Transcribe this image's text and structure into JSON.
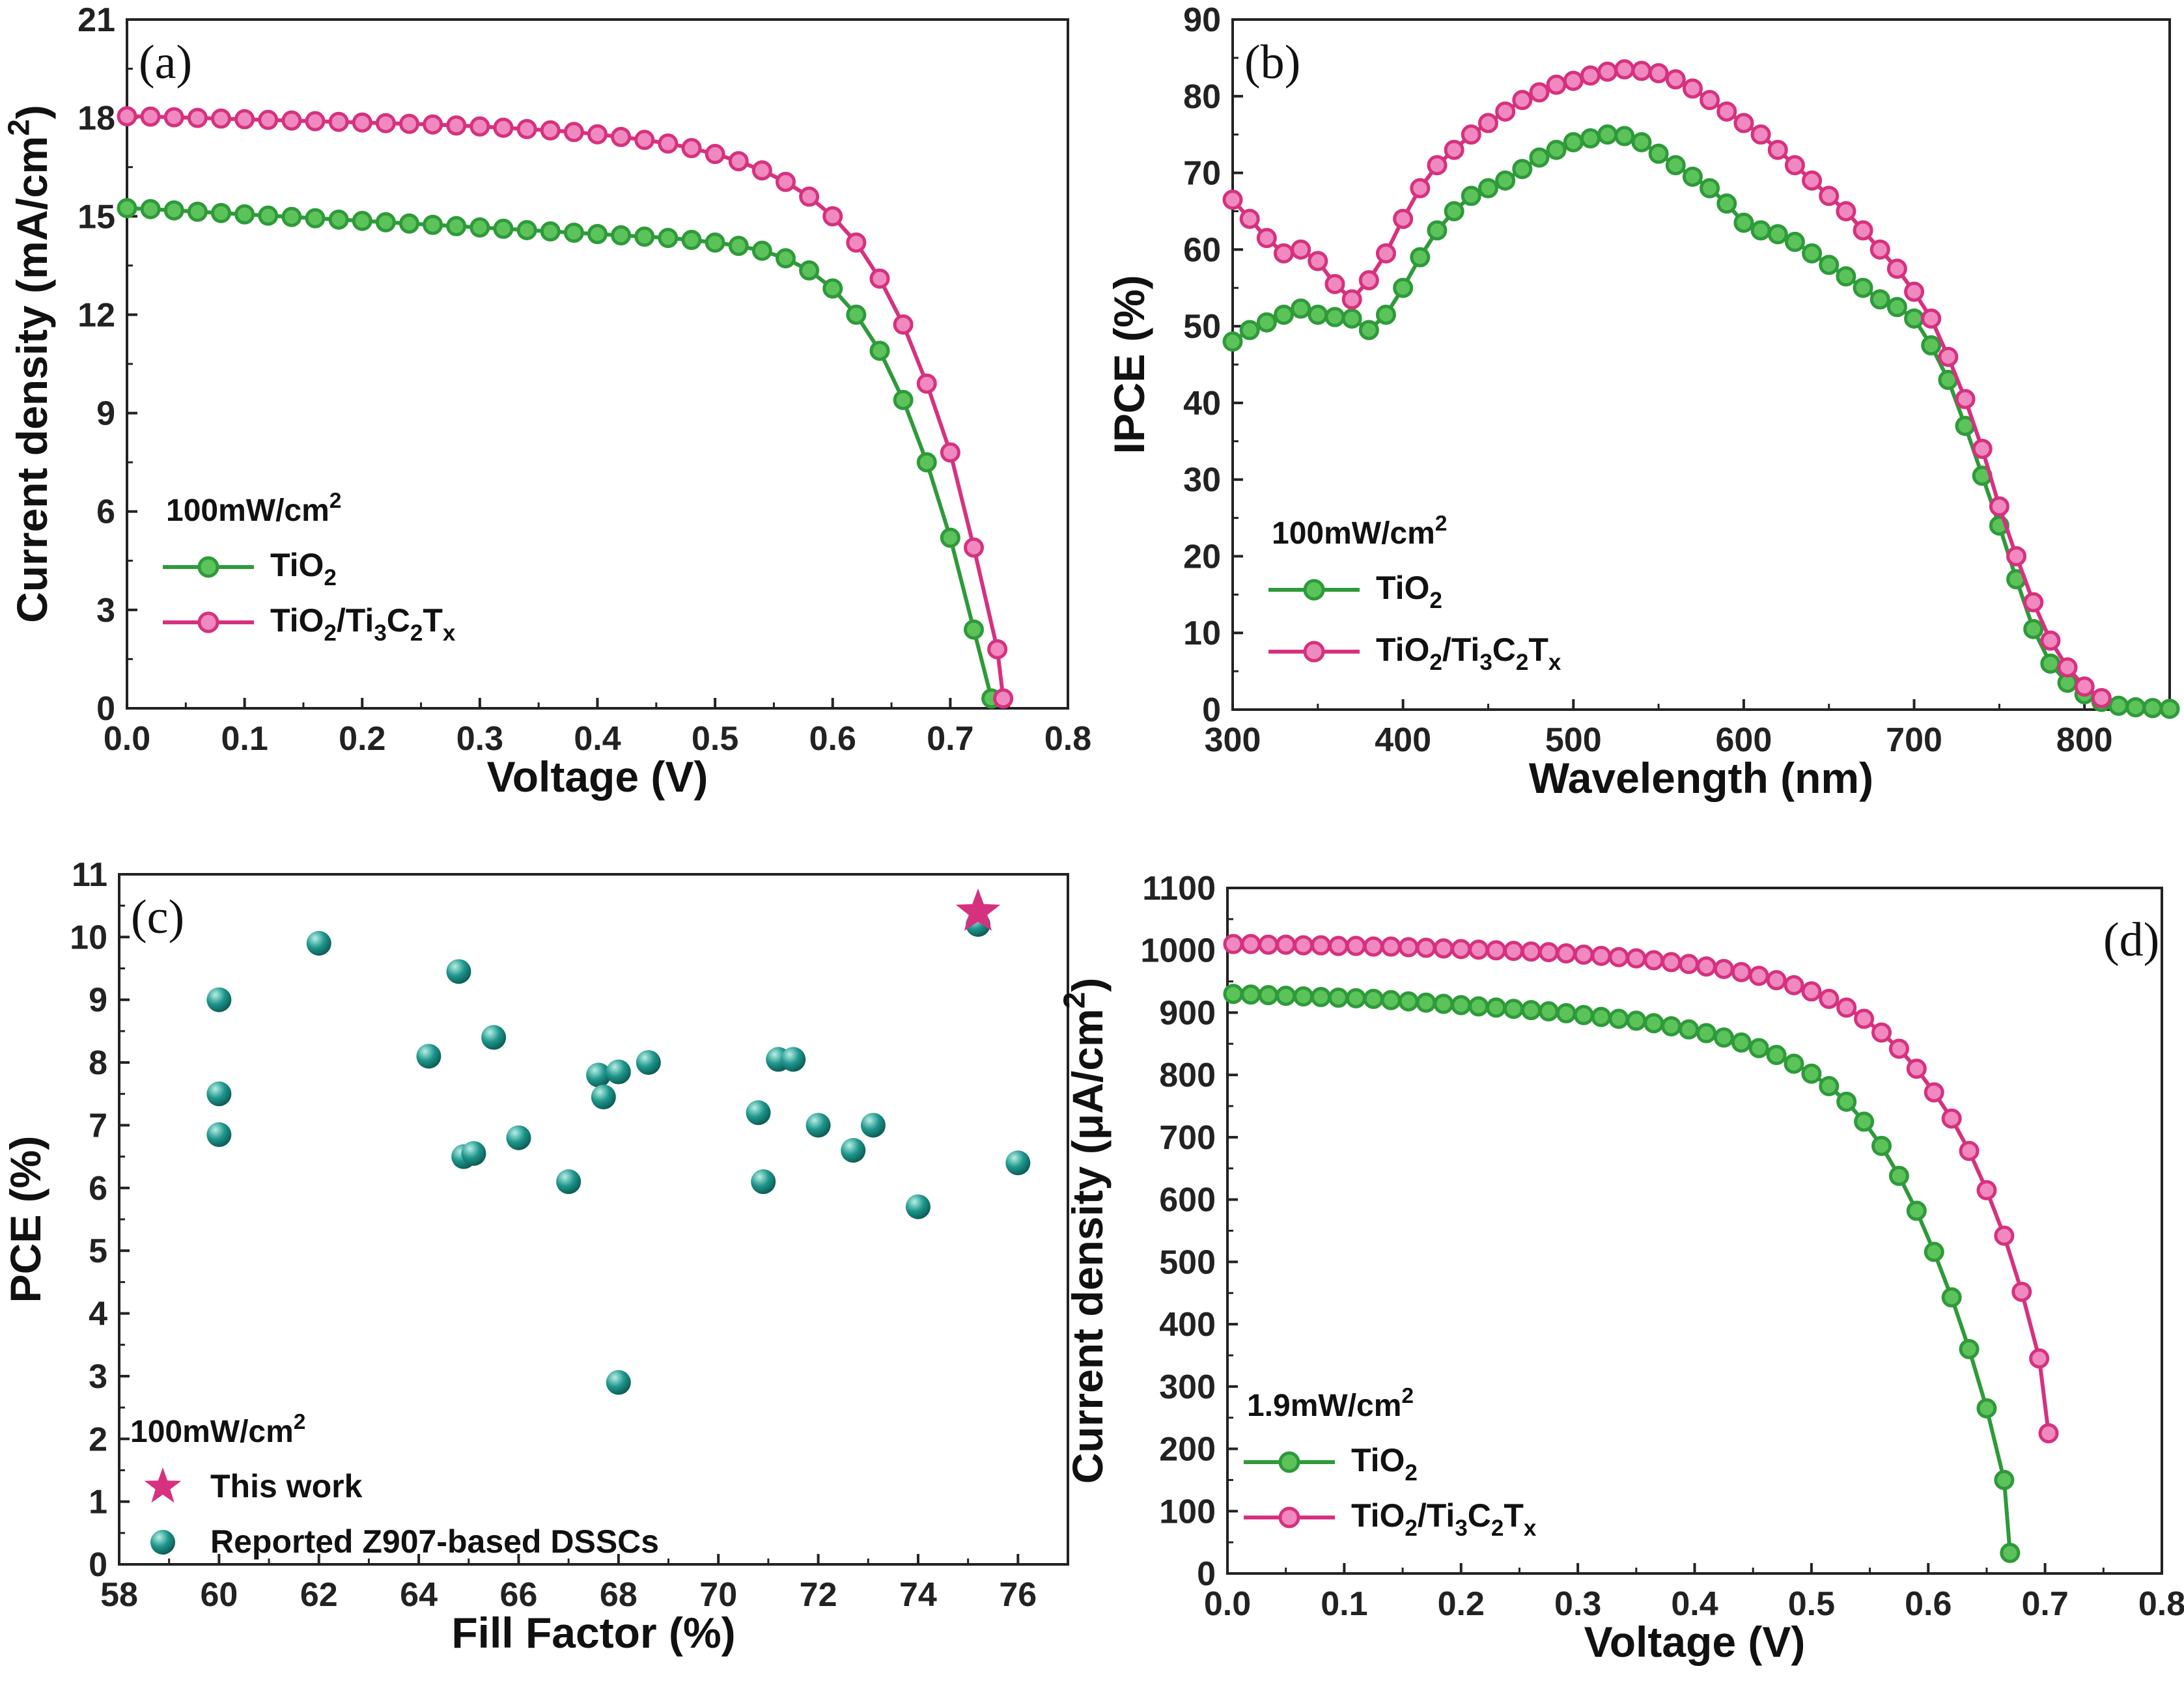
{
  "colors": {
    "green_line": "#2e9a3a",
    "green_marker": "#5cc35a",
    "pink_line": "#d6317f",
    "pink_marker": "#f089bf",
    "teal": "#1e968c",
    "axis": "#222222"
  },
  "chart_data": [
    {
      "panel": "(a)",
      "type": "line",
      "xlabel": "Voltage (V)",
      "ylabel": "Current density (mA/cm2)",
      "ylabel_parts": [
        "Current density (mA/cm",
        "2",
        ")"
      ],
      "xlim": [
        0,
        0.8
      ],
      "ylim": [
        0,
        21
      ],
      "xticks": [
        "0.0",
        "0.1",
        "0.2",
        "0.3",
        "0.4",
        "0.5",
        "0.6",
        "0.7",
        "0.8"
      ],
      "yticks": [
        "0",
        "3",
        "6",
        "9",
        "12",
        "15",
        "18",
        "21"
      ],
      "legend_title": [
        "100mW/cm",
        "2"
      ],
      "legend_position": "lower-left",
      "series": [
        {
          "name": "TiO2",
          "label_parts": [
            [
              "TiO",
              ""
            ],
            [
              "2",
              "sub"
            ]
          ],
          "color_key": "green",
          "x": [
            0.0,
            0.02,
            0.04,
            0.06,
            0.08,
            0.1,
            0.12,
            0.14,
            0.16,
            0.18,
            0.2,
            0.22,
            0.24,
            0.26,
            0.28,
            0.3,
            0.32,
            0.34,
            0.36,
            0.38,
            0.4,
            0.42,
            0.44,
            0.46,
            0.48,
            0.5,
            0.52,
            0.54,
            0.56,
            0.58,
            0.6,
            0.62,
            0.64,
            0.66,
            0.68,
            0.7,
            0.72,
            0.735
          ],
          "y": [
            15.25,
            15.22,
            15.18,
            15.14,
            15.1,
            15.06,
            15.02,
            14.98,
            14.94,
            14.9,
            14.86,
            14.82,
            14.78,
            14.74,
            14.7,
            14.66,
            14.62,
            14.58,
            14.54,
            14.5,
            14.46,
            14.42,
            14.38,
            14.34,
            14.28,
            14.2,
            14.1,
            13.95,
            13.72,
            13.35,
            12.8,
            12.0,
            10.9,
            9.4,
            7.5,
            5.2,
            2.4,
            0.3
          ]
        },
        {
          "name": "TiO2/Ti3C2Tx",
          "label_parts": [
            [
              "TiO",
              ""
            ],
            [
              "2",
              "sub"
            ],
            [
              "/Ti",
              ""
            ],
            [
              "3",
              "sub"
            ],
            [
              "C",
              ""
            ],
            [
              "2",
              "sub"
            ],
            [
              "T",
              ""
            ],
            [
              "x",
              "sub"
            ]
          ],
          "color_key": "pink",
          "x": [
            0.0,
            0.02,
            0.04,
            0.06,
            0.08,
            0.1,
            0.12,
            0.14,
            0.16,
            0.18,
            0.2,
            0.22,
            0.24,
            0.26,
            0.28,
            0.3,
            0.32,
            0.34,
            0.36,
            0.38,
            0.4,
            0.42,
            0.44,
            0.46,
            0.48,
            0.5,
            0.52,
            0.54,
            0.56,
            0.58,
            0.6,
            0.62,
            0.64,
            0.66,
            0.68,
            0.7,
            0.72,
            0.74,
            0.745
          ],
          "y": [
            18.05,
            18.04,
            18.02,
            18.0,
            17.98,
            17.96,
            17.94,
            17.92,
            17.9,
            17.88,
            17.86,
            17.84,
            17.82,
            17.8,
            17.77,
            17.74,
            17.7,
            17.66,
            17.62,
            17.57,
            17.5,
            17.42,
            17.33,
            17.22,
            17.08,
            16.9,
            16.68,
            16.4,
            16.05,
            15.6,
            15.0,
            14.2,
            13.1,
            11.7,
            9.9,
            7.8,
            4.9,
            1.8,
            0.3
          ]
        }
      ]
    },
    {
      "panel": "(b)",
      "type": "line",
      "xlabel": "Wavelength (nm)",
      "ylabel": "IPCE (%)",
      "xlim": [
        300,
        850
      ],
      "ylim": [
        0,
        90
      ],
      "xticks": [
        "300",
        "400",
        "500",
        "600",
        "700",
        "800"
      ],
      "xtick_values": [
        300,
        400,
        500,
        600,
        700,
        800
      ],
      "yticks": [
        "0",
        "10",
        "20",
        "30",
        "40",
        "50",
        "60",
        "70",
        "80",
        "90"
      ],
      "legend_title": [
        "100mW/cm",
        "2"
      ],
      "legend_position": "lower-left",
      "series": [
        {
          "name": "TiO2",
          "label_parts": [
            [
              "TiO",
              ""
            ],
            [
              "2",
              "sub"
            ]
          ],
          "color_key": "green",
          "x": [
            300,
            310,
            320,
            330,
            340,
            350,
            360,
            370,
            380,
            390,
            400,
            410,
            420,
            430,
            440,
            450,
            460,
            470,
            480,
            490,
            500,
            510,
            520,
            530,
            540,
            550,
            560,
            570,
            580,
            590,
            600,
            610,
            620,
            630,
            640,
            650,
            660,
            670,
            680,
            690,
            700,
            710,
            720,
            730,
            740,
            750,
            760,
            770,
            780,
            790,
            800,
            810,
            820,
            830,
            840,
            850
          ],
          "y": [
            48,
            49.5,
            50.5,
            51.5,
            52.3,
            51.5,
            51.2,
            51,
            49.5,
            51.5,
            55,
            59,
            62.5,
            65,
            67,
            68,
            69,
            70.5,
            72,
            73,
            74,
            74.5,
            75,
            74.8,
            74,
            72.5,
            71,
            69.5,
            68,
            66,
            63.5,
            62.5,
            62,
            61,
            59.5,
            58,
            56.5,
            55,
            53.5,
            52.5,
            51,
            47.5,
            43,
            37,
            30.5,
            24,
            17,
            10.5,
            6,
            3.5,
            2,
            1,
            0.5,
            0.3,
            0.2,
            0.1
          ]
        },
        {
          "name": "TiO2/Ti3C2Tx",
          "label_parts": [
            [
              "TiO",
              ""
            ],
            [
              "2",
              "sub"
            ],
            [
              "/Ti",
              ""
            ],
            [
              "3",
              "sub"
            ],
            [
              "C",
              ""
            ],
            [
              "2",
              "sub"
            ],
            [
              "T",
              ""
            ],
            [
              "x",
              "sub"
            ]
          ],
          "color_key": "pink",
          "x": [
            300,
            310,
            320,
            330,
            340,
            350,
            360,
            370,
            380,
            390,
            400,
            410,
            420,
            430,
            440,
            450,
            460,
            470,
            480,
            490,
            500,
            510,
            520,
            530,
            540,
            550,
            560,
            570,
            580,
            590,
            600,
            610,
            620,
            630,
            640,
            650,
            660,
            670,
            680,
            690,
            700,
            710,
            720,
            730,
            740,
            750,
            760,
            770,
            780,
            790,
            800,
            810
          ],
          "y": [
            66.5,
            64,
            61.5,
            59.5,
            60,
            58.5,
            55.5,
            53.5,
            56,
            59.5,
            64,
            68,
            71,
            73,
            75,
            76.5,
            78,
            79.5,
            80.5,
            81.5,
            82,
            82.7,
            83.2,
            83.5,
            83.3,
            83,
            82.2,
            81,
            79.5,
            78,
            76.5,
            75,
            73,
            71,
            69,
            67,
            65,
            62.5,
            60,
            57.5,
            54.5,
            51,
            46,
            40.5,
            34,
            26.5,
            20,
            14,
            9,
            5.5,
            3,
            1.5
          ]
        }
      ]
    },
    {
      "panel": "(c)",
      "type": "scatter",
      "xlabel": "Fill Factor (%)",
      "ylabel": "PCE (%)",
      "xlim": [
        58,
        77
      ],
      "ylim": [
        0,
        11
      ],
      "xticks": [
        "58",
        "60",
        "62",
        "64",
        "66",
        "68",
        "70",
        "72",
        "74",
        "76"
      ],
      "xtick_values": [
        58,
        60,
        62,
        64,
        66,
        68,
        70,
        72,
        74,
        76
      ],
      "yticks": [
        "0",
        "1",
        "2",
        "3",
        "4",
        "5",
        "6",
        "7",
        "8",
        "9",
        "10",
        "11"
      ],
      "legend_title": [
        "100mW/cm",
        "2"
      ],
      "legend_position": "lower-left",
      "series": [
        {
          "name": "This work",
          "marker": "star",
          "color_key": "pink",
          "points": [
            [
              75.2,
              10.4
            ]
          ]
        },
        {
          "name": "Reported Z907-based DSSCs",
          "marker": "sphere",
          "color_key": "teal",
          "points": [
            [
              60,
              9.0
            ],
            [
              60,
              7.5
            ],
            [
              60,
              6.85
            ],
            [
              62,
              9.9
            ],
            [
              64.2,
              8.1
            ],
            [
              64.8,
              9.45
            ],
            [
              64.9,
              6.5
            ],
            [
              65.1,
              6.55
            ],
            [
              65.5,
              8.4
            ],
            [
              66,
              6.8
            ],
            [
              67,
              6.1
            ],
            [
              67.6,
              7.8
            ],
            [
              67.7,
              7.45
            ],
            [
              68,
              7.85
            ],
            [
              68,
              2.9
            ],
            [
              68.6,
              8.0
            ],
            [
              70.8,
              7.2
            ],
            [
              70.9,
              6.1
            ],
            [
              71.2,
              8.05
            ],
            [
              71.5,
              8.05
            ],
            [
              72,
              7.0
            ],
            [
              72.7,
              6.6
            ],
            [
              73.1,
              7.0
            ],
            [
              74,
              5.7
            ],
            [
              75.2,
              10.2
            ],
            [
              76,
              6.4
            ]
          ]
        }
      ]
    },
    {
      "panel": "(d)",
      "type": "line",
      "xlabel": "Voltage (V)",
      "ylabel": "Current density (μA/cm2)",
      "ylabel_parts": [
        "Current density (μA/cm",
        "2",
        ")"
      ],
      "xlim": [
        0,
        0.8
      ],
      "ylim": [
        0,
        1100
      ],
      "xticks": [
        "0.0",
        "0.1",
        "0.2",
        "0.3",
        "0.4",
        "0.5",
        "0.6",
        "0.7",
        "0.8"
      ],
      "yticks": [
        "0",
        "100",
        "200",
        "300",
        "400",
        "500",
        "600",
        "700",
        "800",
        "900",
        "1000",
        "1100"
      ],
      "legend_title": [
        "1.9mW/cm",
        "2"
      ],
      "legend_position": "lower-left",
      "series": [
        {
          "name": "TiO2",
          "label_parts": [
            [
              "TiO",
              ""
            ],
            [
              "2",
              "sub"
            ]
          ],
          "color_key": "green",
          "x": [
            0.005,
            0.02,
            0.035,
            0.05,
            0.065,
            0.08,
            0.095,
            0.11,
            0.125,
            0.14,
            0.155,
            0.17,
            0.185,
            0.2,
            0.215,
            0.23,
            0.245,
            0.26,
            0.275,
            0.29,
            0.305,
            0.32,
            0.335,
            0.35,
            0.365,
            0.38,
            0.395,
            0.41,
            0.425,
            0.44,
            0.455,
            0.47,
            0.485,
            0.5,
            0.515,
            0.53,
            0.545,
            0.56,
            0.575,
            0.59,
            0.605,
            0.62,
            0.635,
            0.65,
            0.665,
            0.67
          ],
          "y": [
            930,
            929,
            928,
            927,
            926,
            925,
            924,
            923,
            922,
            920,
            918,
            916,
            914,
            912,
            910,
            908,
            906,
            904,
            902,
            899,
            896,
            893,
            890,
            887,
            883,
            878,
            873,
            867,
            860,
            852,
            843,
            832,
            818,
            802,
            782,
            757,
            725,
            686,
            638,
            582,
            516,
            443,
            360,
            265,
            150,
            33
          ]
        },
        {
          "name": "TiO2/Ti3C2Tx",
          "label_parts": [
            [
              "TiO",
              ""
            ],
            [
              "2",
              "sub"
            ],
            [
              "/Ti",
              ""
            ],
            [
              "3",
              "sub"
            ],
            [
              "C",
              ""
            ],
            [
              "2",
              "sub"
            ],
            [
              "T",
              ""
            ],
            [
              "x",
              "sub"
            ]
          ],
          "color_key": "pink",
          "x": [
            0.005,
            0.02,
            0.035,
            0.05,
            0.065,
            0.08,
            0.095,
            0.11,
            0.125,
            0.14,
            0.155,
            0.17,
            0.185,
            0.2,
            0.215,
            0.23,
            0.245,
            0.26,
            0.275,
            0.29,
            0.305,
            0.32,
            0.335,
            0.35,
            0.365,
            0.38,
            0.395,
            0.41,
            0.425,
            0.44,
            0.455,
            0.47,
            0.485,
            0.5,
            0.515,
            0.53,
            0.545,
            0.56,
            0.575,
            0.59,
            0.605,
            0.62,
            0.635,
            0.65,
            0.665,
            0.68,
            0.695,
            0.703
          ],
          "y": [
            1010,
            1010,
            1009,
            1009,
            1008,
            1008,
            1007,
            1007,
            1006,
            1006,
            1005,
            1004,
            1003,
            1002,
            1001,
            1000,
            999,
            998,
            997,
            995,
            993,
            991,
            989,
            987,
            984,
            981,
            978,
            974,
            970,
            965,
            959,
            952,
            944,
            934,
            922,
            908,
            890,
            868,
            842,
            810,
            772,
            730,
            678,
            615,
            542,
            452,
            345,
            225
          ]
        }
      ]
    }
  ]
}
